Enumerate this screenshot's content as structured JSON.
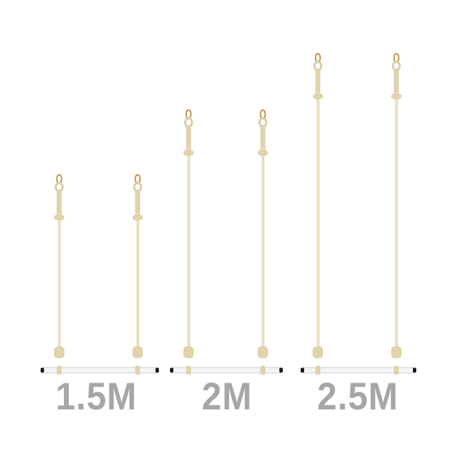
{
  "colors": {
    "background": "#ffffff",
    "rope": "#efe6cc",
    "rope_shade": "#d8cba6",
    "knot": "#e2d3a8",
    "ring": "#b89448",
    "bar": "#f4f4f4",
    "bar_cap": "#1a1a1a",
    "label": "#a6a6a6"
  },
  "trapezes": [
    {
      "label": "1.5M"
    },
    {
      "label": "2M"
    },
    {
      "label": "2.5M"
    }
  ]
}
